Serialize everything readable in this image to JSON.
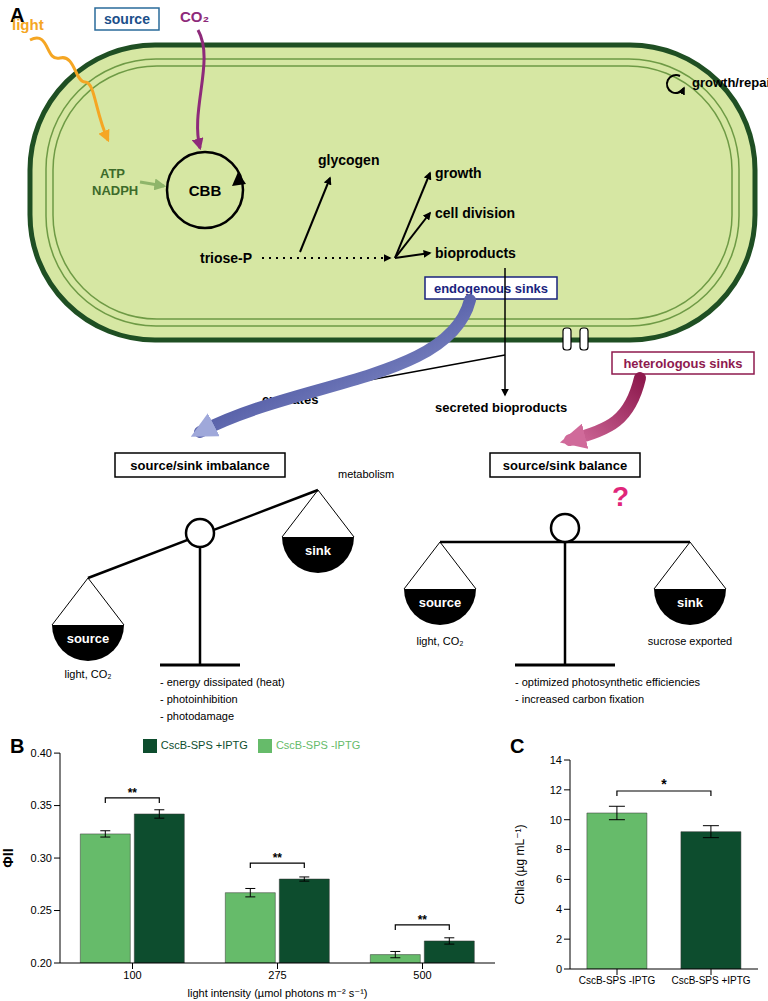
{
  "diagram": {
    "label": "A",
    "light": "light",
    "source": "source",
    "co2": "CO₂",
    "atp": "ATP",
    "nadph": "NADPH",
    "cbb": "CBB",
    "triose": "triose-P",
    "glycogen": "glycogen",
    "outputs": [
      "growth",
      "cell division",
      "bioproducts"
    ],
    "growth_repair": "growth/repair",
    "endogenous": "endogenous sinks",
    "heterologous": "heterologous sinks",
    "exudates": "exudates",
    "secreted": "secreted bioproducts",
    "left_balance": {
      "title": "source/sink imbalance",
      "source": "source",
      "source_label": "light, CO₂",
      "sink": "sink",
      "sink_label": "metabolism",
      "bullets": [
        "- energy dissipated (heat)",
        "- photoinhibition",
        "- photodamage"
      ]
    },
    "right_balance": {
      "title": "source/sink balance",
      "question": "?",
      "source": "source",
      "source_label": "light, CO₂",
      "sink": "sink",
      "sink_label": "sucrose exported",
      "bullets": [
        "- optimized photosynthetic efficiencies",
        "- increased carbon fixation"
      ]
    }
  },
  "chart_data": [
    {
      "type": "bar",
      "label": "B",
      "categories": [
        "100",
        "275",
        "500"
      ],
      "series": [
        {
          "name": "CscB-SPS -IPTG",
          "color": "#66bb6a",
          "values": [
            0.323,
            0.267,
            0.208
          ],
          "errors": [
            0.003,
            0.004,
            0.003
          ]
        },
        {
          "name": "CscB-SPS +IPTG",
          "color": "#0d4d2e",
          "values": [
            0.342,
            0.28,
            0.221
          ],
          "errors": [
            0.004,
            0.002,
            0.003
          ]
        }
      ],
      "annotations": [
        "**",
        "**",
        "**"
      ],
      "xlabel": "light intensity (µmol photons m⁻² s⁻¹)",
      "ylabel": "ΦII",
      "ylim": [
        0.2,
        0.4
      ],
      "yticks": [
        {
          "value": 0.2,
          "label": "0.20"
        },
        {
          "value": 0.25,
          "label": "0.25"
        },
        {
          "value": 0.3,
          "label": "0.30"
        },
        {
          "value": 0.35,
          "label": "0.35"
        },
        {
          "value": 0.4,
          "label": "0.40"
        }
      ],
      "legend": "top"
    },
    {
      "type": "bar",
      "label": "C",
      "categories": [
        "CscB-SPS -IPTG",
        "CscB-SPS +IPTG"
      ],
      "values": [
        10.45,
        9.2
      ],
      "errors": [
        0.45,
        0.4
      ],
      "colors": [
        "#66bb6a",
        "#0d4d2e"
      ],
      "annotation": "*",
      "ylabel": "Chla (µg mL⁻¹)",
      "ylim": [
        0,
        14
      ],
      "yticks": [
        0,
        2,
        4,
        6,
        8,
        10,
        12,
        14
      ]
    }
  ]
}
